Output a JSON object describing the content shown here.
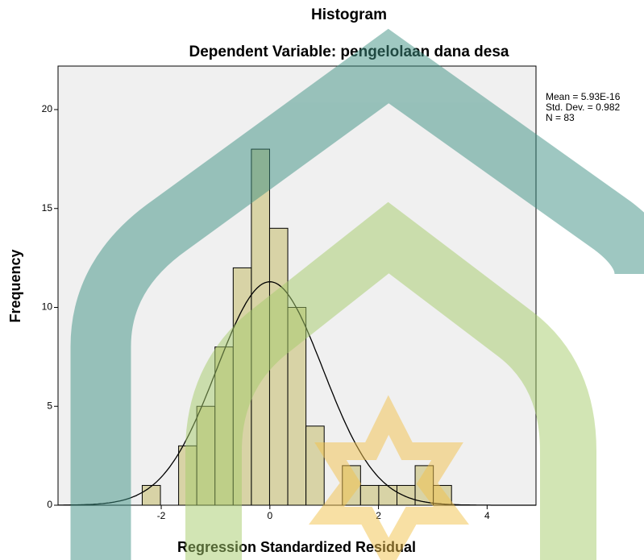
{
  "chart_data": {
    "type": "histogram",
    "title": "Histogram",
    "subtitle": "Dependent Variable: pengelolaan dana desa",
    "x_label": "Regression Standardized Residual",
    "y_label": "Frequency",
    "bins": [
      -2.35,
      -2.015,
      -1.68,
      -1.345,
      -1.01,
      -0.675,
      -0.34,
      -0.005,
      0.33,
      0.665,
      1.0,
      1.335,
      1.67,
      2.005,
      2.34,
      2.675,
      3.01,
      3.345
    ],
    "values": [
      1,
      0,
      3,
      5,
      8,
      12,
      18,
      14,
      10,
      4,
      0,
      2,
      1,
      1,
      1,
      2,
      1
    ],
    "color": "#d8d3a6",
    "xlim": [
      -3.9,
      4.9
    ],
    "xticks": [
      -2,
      0,
      2,
      4
    ],
    "ylim": [
      0,
      22.2
    ],
    "yticks": [
      0,
      5,
      10,
      15,
      20
    ],
    "stats": [
      {
        "value": 5.93e-16,
        "label": "Mean = 5.93E-16"
      },
      {
        "value": 0.982,
        "label": "Std. Dev. = 0.982"
      },
      {
        "value": 83,
        "label": "N = 83"
      }
    ],
    "normal_curve": true
  }
}
